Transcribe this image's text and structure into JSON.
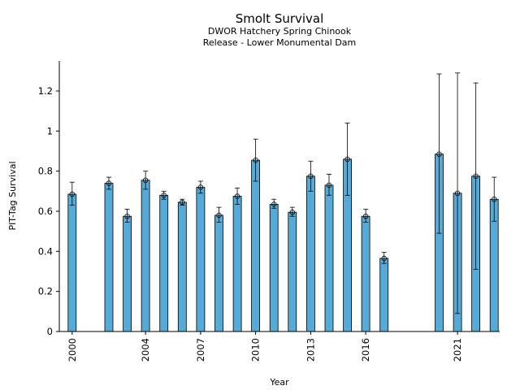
{
  "chart_data": {
    "type": "bar",
    "title": "Smolt Survival",
    "subtitle_lines": [
      "DWOR Hatchery Spring Chinook",
      "Release - Lower Monumental Dam"
    ],
    "xlabel": "Year",
    "ylabel": "PIT-Tag Survival",
    "ylim": [
      0,
      1.35
    ],
    "xlim": [
      1999.3,
      2023.3
    ],
    "y_ticks": [
      0,
      0.2,
      0.4,
      0.6,
      0.8,
      1,
      1.2
    ],
    "y_tick_labels": [
      "0",
      "0.2",
      "0.4",
      "0.6",
      "0.8",
      "1",
      "1.2"
    ],
    "x_ticks": [
      2000,
      2004,
      2007,
      2010,
      2013,
      2016,
      2021
    ],
    "x_tick_labels": [
      "2000",
      "2004",
      "2007",
      "2010",
      "2013",
      "2016",
      "2021"
    ],
    "bar_color": "#56aad8",
    "grid": false,
    "legend": "none",
    "series": [
      {
        "points": [
          {
            "year": 2000,
            "value": 0.685,
            "lower": 0.63,
            "upper": 0.745
          },
          {
            "year": 2002,
            "value": 0.74,
            "lower": 0.71,
            "upper": 0.77
          },
          {
            "year": 2003,
            "value": 0.575,
            "lower": 0.545,
            "upper": 0.61
          },
          {
            "year": 2004,
            "value": 0.755,
            "lower": 0.71,
            "upper": 0.8
          },
          {
            "year": 2005,
            "value": 0.68,
            "lower": 0.66,
            "upper": 0.7
          },
          {
            "year": 2006,
            "value": 0.645,
            "lower": 0.63,
            "upper": 0.66
          },
          {
            "year": 2007,
            "value": 0.72,
            "lower": 0.69,
            "upper": 0.75
          },
          {
            "year": 2008,
            "value": 0.58,
            "lower": 0.545,
            "upper": 0.62
          },
          {
            "year": 2009,
            "value": 0.675,
            "lower": 0.635,
            "upper": 0.715
          },
          {
            "year": 2010,
            "value": 0.855,
            "lower": 0.75,
            "upper": 0.96
          },
          {
            "year": 2011,
            "value": 0.635,
            "lower": 0.615,
            "upper": 0.66
          },
          {
            "year": 2012,
            "value": 0.595,
            "lower": 0.575,
            "upper": 0.62
          },
          {
            "year": 2013,
            "value": 0.775,
            "lower": 0.7,
            "upper": 0.85
          },
          {
            "year": 2014,
            "value": 0.73,
            "lower": 0.68,
            "upper": 0.785
          },
          {
            "year": 2015,
            "value": 0.86,
            "lower": 0.68,
            "upper": 1.04
          },
          {
            "year": 2016,
            "value": 0.575,
            "lower": 0.545,
            "upper": 0.61
          },
          {
            "year": 2017,
            "value": 0.365,
            "lower": 0.34,
            "upper": 0.395
          },
          {
            "year": 2020,
            "value": 0.885,
            "lower": 0.49,
            "upper": 1.285
          },
          {
            "year": 2021,
            "value": 0.69,
            "lower": 0.09,
            "upper": 1.29
          },
          {
            "year": 2022,
            "value": 0.775,
            "lower": 0.31,
            "upper": 1.24
          },
          {
            "year": 2023,
            "value": 0.66,
            "lower": 0.55,
            "upper": 0.77
          }
        ]
      }
    ]
  }
}
